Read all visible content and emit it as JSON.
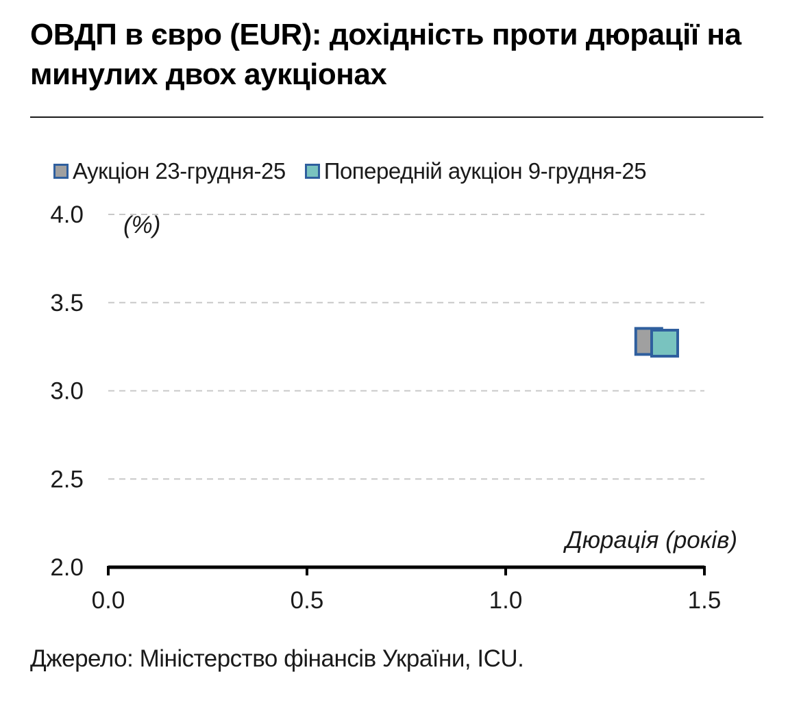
{
  "title": "ОВДП в євро (EUR): дохідність проти дюрації на минулих двох аукціонах",
  "source": "Джерело: Міністерство фінансів України, ICU.",
  "chart_data": {
    "type": "scatter",
    "xlabel": "Дюрація (років)",
    "ylabel": "(%)",
    "xlim": [
      0.0,
      1.5
    ],
    "ylim": [
      2.0,
      4.0
    ],
    "x_ticks": [
      "0.0",
      "0.5",
      "1.0",
      "1.5"
    ],
    "y_ticks": [
      "2.0",
      "2.5",
      "3.0",
      "3.5",
      "4.0"
    ],
    "grid": "horizontal-dashed",
    "legend_position": "top-left",
    "series": [
      {
        "name": "Аукціон 23-грудня-25",
        "color": "#a0a0a0",
        "border": "#2f5f9e",
        "points": [
          {
            "x": 1.36,
            "y": 3.28
          }
        ]
      },
      {
        "name": "Попередній аукціон 9-грудня-25",
        "color": "#79c3bf",
        "border": "#2f5f9e",
        "points": [
          {
            "x": 1.4,
            "y": 3.27
          }
        ]
      }
    ]
  }
}
